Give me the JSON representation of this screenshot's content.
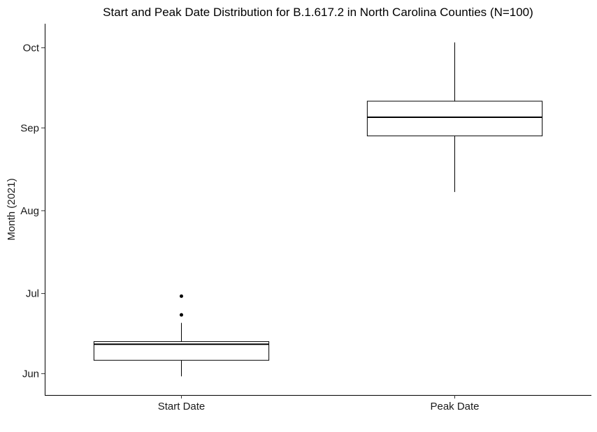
{
  "chart_data": {
    "type": "boxplot",
    "title": "Start and Peak Date Distribution for B.1.617.2 in North Carolina Counties (N=100)",
    "xlabel": "",
    "ylabel": "Month (2021)",
    "categories": [
      "Start Date",
      "Peak Date"
    ],
    "y_ticks": [
      {
        "label": "Jun",
        "date": "2021-06-01"
      },
      {
        "label": "Jul",
        "date": "2021-07-01"
      },
      {
        "label": "Aug",
        "date": "2021-08-01"
      },
      {
        "label": "Sep",
        "date": "2021-09-01"
      },
      {
        "label": "Oct",
        "date": "2021-10-01"
      }
    ],
    "ylim": [
      "2021-05-24",
      "2021-10-10"
    ],
    "grid": false,
    "boxes": [
      {
        "category": "Start Date",
        "whisker_low": "2021-05-31",
        "q1": "2021-06-06",
        "median": "2021-06-12",
        "q3": "2021-06-13",
        "whisker_high": "2021-06-20",
        "outliers": [
          "2021-06-23",
          "2021-06-30"
        ]
      },
      {
        "category": "Peak Date",
        "whisker_low": "2021-08-08",
        "q1": "2021-08-29",
        "median": "2021-09-05",
        "q3": "2021-09-11",
        "whisker_high": "2021-10-03",
        "outliers": []
      }
    ]
  }
}
